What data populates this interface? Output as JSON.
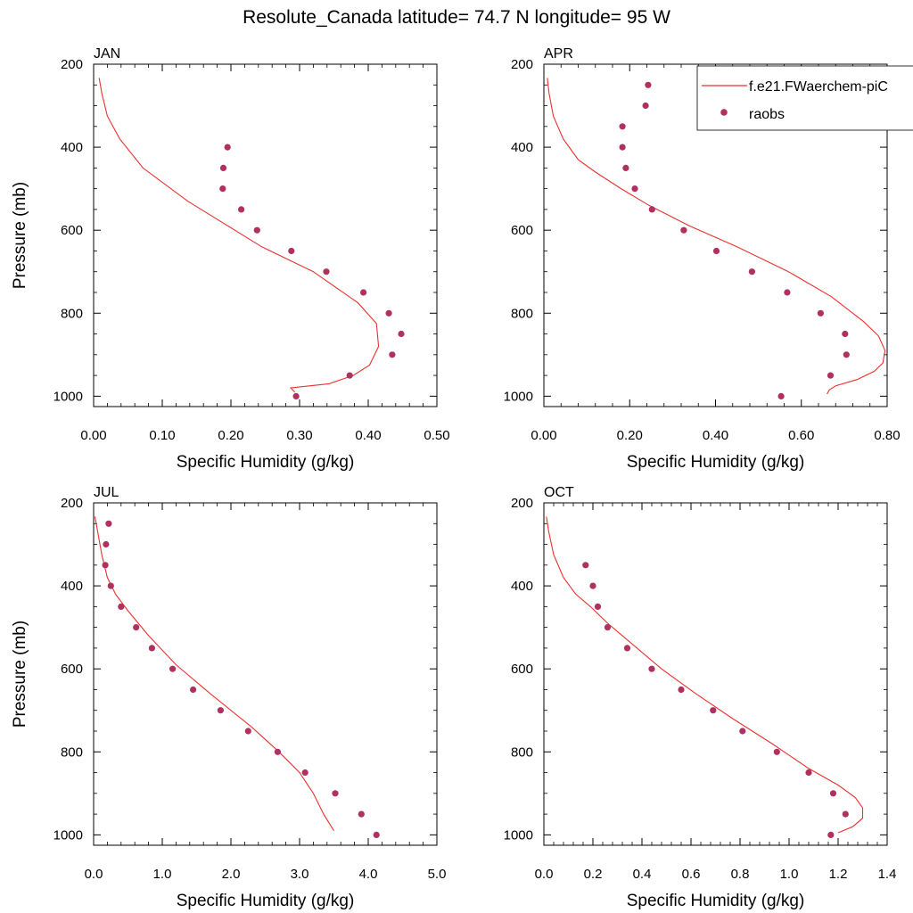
{
  "figure": {
    "title": "Resolute_Canada  latitude= 74.7 N longitude= 95 W"
  },
  "legend": {
    "items": [
      {
        "label": "f.e21.FWaerchem-piC",
        "kind": "line",
        "color": "#e8322f"
      },
      {
        "label": "raobs",
        "kind": "marker",
        "color": "#b03060"
      }
    ]
  },
  "colors": {
    "model": "#e8322f",
    "obs": "#b03060"
  },
  "chart_data": [
    {
      "type": "line",
      "month": "JAN",
      "xlabel": "Specific Humidity (g/kg)",
      "ylabel": "Pressure (mb)",
      "xlim": [
        0,
        0.5
      ],
      "xticks": [
        0,
        0.1,
        0.2,
        0.3,
        0.4,
        0.5
      ],
      "xtick_labels": [
        "0.00",
        "0.10",
        "0.20",
        "0.30",
        "0.40",
        "0.50"
      ],
      "ylim": [
        200,
        1025
      ],
      "y_inverted": true,
      "yticks": [
        200,
        400,
        600,
        800,
        1000
      ],
      "ytick_labels": [
        "200",
        "400",
        "600",
        "800",
        "1000"
      ],
      "series": [
        {
          "name": "f.e21.FWaerchem-piC",
          "style": "line",
          "x": [
            0.008,
            0.012,
            0.02,
            0.038,
            0.072,
            0.137,
            0.245,
            0.32,
            0.385,
            0.412,
            0.415,
            0.402,
            0.378,
            0.343,
            0.287,
            0.293
          ],
          "y": [
            233,
            270,
            325,
            380,
            450,
            530,
            640,
            700,
            775,
            825,
            880,
            925,
            950,
            970,
            980,
            990
          ]
        },
        {
          "name": "raobs",
          "style": "marker",
          "x": [
            0.195,
            0.189,
            0.188,
            0.215,
            0.238,
            0.288,
            0.339,
            0.393,
            0.43,
            0.448,
            0.435,
            0.373,
            0.295
          ],
          "y": [
            400,
            450,
            500,
            550,
            600,
            650,
            700,
            750,
            800,
            850,
            900,
            950,
            1000
          ]
        }
      ]
    },
    {
      "type": "line",
      "month": "APR",
      "xlabel": "Specific Humidity (g/kg)",
      "ylabel": "",
      "xlim": [
        0,
        0.8
      ],
      "xticks": [
        0,
        0.2,
        0.4,
        0.6,
        0.8
      ],
      "xtick_labels": [
        "0.00",
        "0.20",
        "0.40",
        "0.60",
        "0.80"
      ],
      "ylim": [
        200,
        1025
      ],
      "y_inverted": true,
      "yticks": [
        200,
        400,
        600,
        800,
        1000
      ],
      "ytick_labels": [
        "200",
        "400",
        "600",
        "800",
        "1000"
      ],
      "series": [
        {
          "name": "f.e21.FWaerchem-piC",
          "style": "line",
          "x": [
            0.008,
            0.012,
            0.022,
            0.045,
            0.08,
            0.12,
            0.18,
            0.245,
            0.34,
            0.45,
            0.57,
            0.67,
            0.745,
            0.78,
            0.795,
            0.79,
            0.77,
            0.73,
            0.68,
            0.665,
            0.66
          ],
          "y": [
            233,
            270,
            325,
            380,
            430,
            460,
            500,
            540,
            590,
            640,
            700,
            760,
            820,
            855,
            890,
            920,
            940,
            960,
            975,
            985,
            995
          ]
        },
        {
          "name": "raobs",
          "style": "marker",
          "x": [
            0.243,
            0.237,
            0.183,
            0.183,
            0.191,
            0.212,
            0.252,
            0.326,
            0.402,
            0.485,
            0.567,
            0.645,
            0.702,
            0.705,
            0.668,
            0.553
          ],
          "y": [
            250,
            300,
            350,
            400,
            450,
            500,
            550,
            600,
            650,
            700,
            750,
            800,
            850,
            900,
            950,
            1000
          ]
        }
      ]
    },
    {
      "type": "line",
      "month": "JUL",
      "xlabel": "Specific Humidity (g/kg)",
      "ylabel": "Pressure (mb)",
      "xlim": [
        0,
        5
      ],
      "xticks": [
        0,
        1,
        2,
        3,
        4,
        5
      ],
      "xtick_labels": [
        "0.0",
        "1.0",
        "2.0",
        "3.0",
        "4.0",
        "5.0"
      ],
      "ylim": [
        200,
        1025
      ],
      "y_inverted": true,
      "yticks": [
        200,
        400,
        600,
        800,
        1000
      ],
      "ytick_labels": [
        "200",
        "400",
        "600",
        "800",
        "1000"
      ],
      "series": [
        {
          "name": "f.e21.FWaerchem-piC",
          "style": "line",
          "x": [
            0.02,
            0.06,
            0.12,
            0.2,
            0.32,
            0.5,
            0.8,
            1.2,
            1.7,
            2.3,
            2.7,
            3.0,
            3.2,
            3.35,
            3.5
          ],
          "y": [
            233,
            270,
            325,
            380,
            420,
            460,
            520,
            590,
            660,
            740,
            800,
            850,
            900,
            950,
            990
          ]
        },
        {
          "name": "raobs",
          "style": "marker",
          "x": [
            0.22,
            0.18,
            0.17,
            0.25,
            0.4,
            0.62,
            0.85,
            1.15,
            1.45,
            1.85,
            2.25,
            2.68,
            3.08,
            3.52,
            3.9,
            4.12
          ],
          "y": [
            250,
            300,
            350,
            400,
            450,
            500,
            550,
            600,
            650,
            700,
            750,
            800,
            850,
            900,
            950,
            1000
          ]
        }
      ]
    },
    {
      "type": "line",
      "month": "OCT",
      "xlabel": "Specific Humidity (g/kg)",
      "ylabel": "",
      "xlim": [
        0,
        1.4
      ],
      "xticks": [
        0,
        0.2,
        0.4,
        0.6,
        0.8,
        1.0,
        1.2,
        1.4
      ],
      "xtick_labels": [
        "0.0",
        "0.2",
        "0.4",
        "0.6",
        "0.8",
        "1.0",
        "1.2",
        "1.4"
      ],
      "ylim": [
        200,
        1025
      ],
      "y_inverted": true,
      "yticks": [
        200,
        400,
        600,
        800,
        1000
      ],
      "ytick_labels": [
        "200",
        "400",
        "600",
        "800",
        "1000"
      ],
      "series": [
        {
          "name": "f.e21.FWaerchem-piC",
          "style": "line",
          "x": [
            0.01,
            0.02,
            0.04,
            0.08,
            0.13,
            0.19,
            0.26,
            0.36,
            0.48,
            0.62,
            0.77,
            0.93,
            1.08,
            1.2,
            1.27,
            1.3,
            1.3,
            1.26,
            1.2
          ],
          "y": [
            233,
            270,
            325,
            380,
            420,
            450,
            490,
            540,
            600,
            660,
            720,
            780,
            840,
            880,
            910,
            935,
            960,
            980,
            995
          ]
        },
        {
          "name": "raobs",
          "style": "marker",
          "x": [
            0.17,
            0.2,
            0.22,
            0.26,
            0.34,
            0.44,
            0.56,
            0.69,
            0.81,
            0.95,
            1.08,
            1.18,
            1.23,
            1.17
          ],
          "y": [
            350,
            400,
            450,
            500,
            550,
            600,
            650,
            700,
            750,
            800,
            850,
            900,
            950,
            1000
          ]
        }
      ]
    }
  ]
}
